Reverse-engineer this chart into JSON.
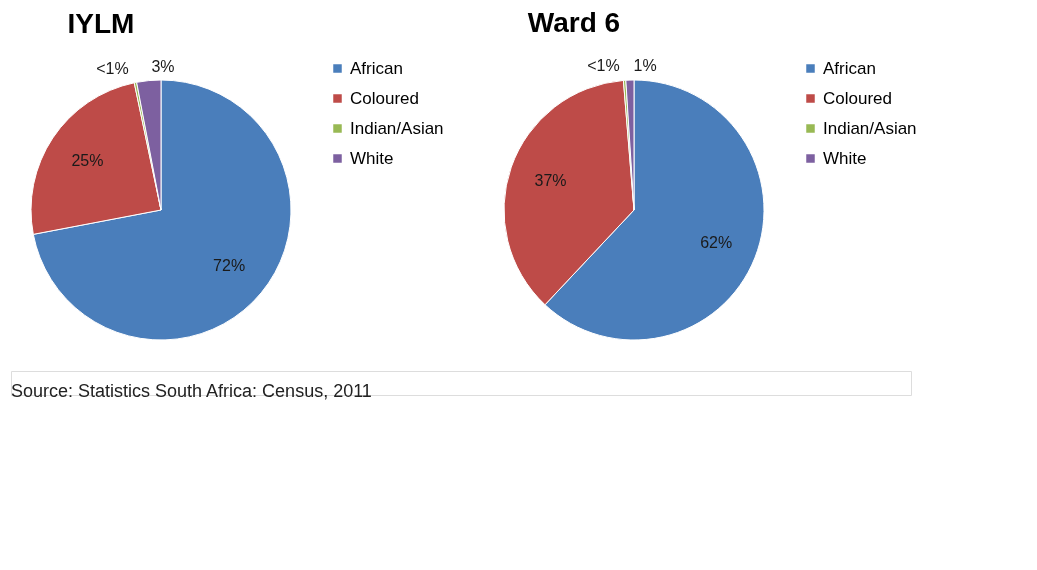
{
  "chart_data": [
    {
      "type": "pie",
      "title": "IYLM",
      "categories": [
        "African",
        "Coloured",
        "Indian/Asian",
        "White"
      ],
      "values": [
        72,
        24.7,
        0.3,
        3
      ],
      "value_labels": [
        "72%",
        "25%",
        "<1%",
        "3%"
      ],
      "colors": [
        "#4a7ebb",
        "#be4b48",
        "#98b954",
        "#7d60a0"
      ],
      "legend": "right",
      "annotations": [
        "Source: Statistics South Africa: Census, 2011"
      ]
    },
    {
      "type": "pie",
      "title": "Ward 6",
      "categories": [
        "African",
        "Coloured",
        "Indian/Asian",
        "White"
      ],
      "values": [
        62,
        36.7,
        0.3,
        1
      ],
      "value_labels": [
        "62%",
        "37%",
        "<1%",
        "1%"
      ],
      "colors": [
        "#4a7ebb",
        "#be4b48",
        "#98b954",
        "#7d60a0"
      ],
      "legend": "right"
    }
  ]
}
